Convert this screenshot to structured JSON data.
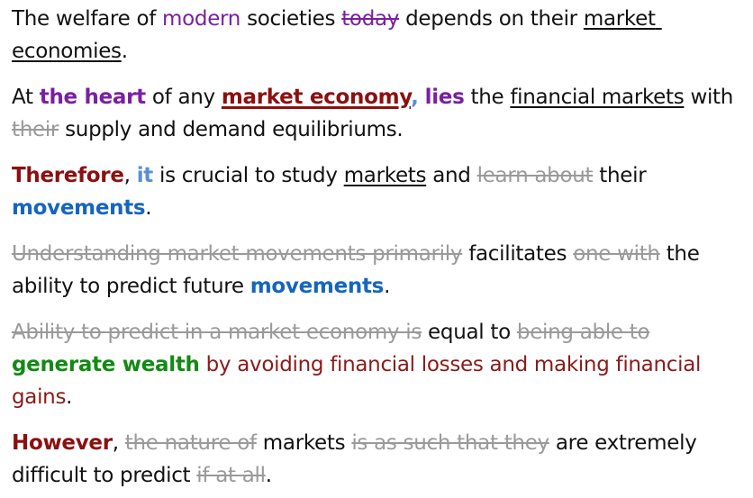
{
  "paragraphs": [
    {
      "segments": [
        {
          "text": "The welfare of ",
          "style": "plain"
        },
        {
          "text": "modern",
          "style": "purple"
        },
        {
          "text": " societies ",
          "style": "plain"
        },
        {
          "text": "today",
          "style": "strike-purple"
        },
        {
          "text": " depends on their ",
          "style": "plain"
        },
        {
          "text": "market economies",
          "style": "underline"
        },
        {
          "text": ".",
          "style": "plain"
        }
      ]
    },
    {
      "segments": [
        {
          "text": "At ",
          "style": "plain"
        },
        {
          "text": "the heart",
          "style": "purple-bold"
        },
        {
          "text": " of any ",
          "style": "plain"
        },
        {
          "text": "market economy",
          "style": "underline-maroon-bold"
        },
        {
          "text": ",",
          "style": "lightblue-bold"
        },
        {
          "text": " ",
          "style": "plain"
        },
        {
          "text": "lies",
          "style": "purple-bold"
        },
        {
          "text": " the ",
          "style": "plain"
        },
        {
          "text": "financial markets",
          "style": "underline"
        },
        {
          "text": " with ",
          "style": "plain"
        },
        {
          "text": "their",
          "style": "strike-gray"
        },
        {
          "text": " supply and demand equilibriums.",
          "style": "plain"
        }
      ]
    },
    {
      "segments": [
        {
          "text": "Therefore",
          "style": "maroon-bold"
        },
        {
          "text": ", ",
          "style": "plain"
        },
        {
          "text": "it",
          "style": "lightblue-bold"
        },
        {
          "text": " is crucial to study ",
          "style": "plain"
        },
        {
          "text": "markets",
          "style": "underline"
        },
        {
          "text": " and ",
          "style": "plain"
        },
        {
          "text": "learn about",
          "style": "strike-gray"
        },
        {
          "text": " their ",
          "style": "plain"
        },
        {
          "text": "movements",
          "style": "blue-bold"
        },
        {
          "text": ".",
          "style": "plain"
        }
      ]
    },
    {
      "segments": [
        {
          "text": "Understanding market movements primarily",
          "style": "strike-gray"
        },
        {
          "text": " facilitates ",
          "style": "plain"
        },
        {
          "text": "one with",
          "style": "strike-gray"
        },
        {
          "text": " the ability to predict future ",
          "style": "plain"
        },
        {
          "text": "movements",
          "style": "blue-bold"
        },
        {
          "text": ".",
          "style": "plain"
        }
      ]
    },
    {
      "segments": [
        {
          "text": "Ability to predict in a market economy is",
          "style": "strike-gray"
        },
        {
          "text": " equal to ",
          "style": "plain"
        },
        {
          "text": "being able to",
          "style": "strike-gray"
        },
        {
          "text": " ",
          "style": "plain"
        },
        {
          "text": "generate wealth",
          "style": "green-bold"
        },
        {
          "text": " by avoiding financial losses and making financial gains",
          "style": "maroon"
        },
        {
          "text": ".",
          "style": "plain"
        }
      ]
    },
    {
      "segments": [
        {
          "text": "However",
          "style": "maroon-bold"
        },
        {
          "text": ", ",
          "style": "plain"
        },
        {
          "text": "the nature of",
          "style": "strike-gray"
        },
        {
          "text": " markets ",
          "style": "plain"
        },
        {
          "text": "is as such that they",
          "style": "strike-gray"
        },
        {
          "text": " are extremely difficult to predict ",
          "style": "plain"
        },
        {
          "text": "if at all",
          "style": "strike-gray"
        },
        {
          "text": ".",
          "style": "plain"
        }
      ]
    }
  ]
}
